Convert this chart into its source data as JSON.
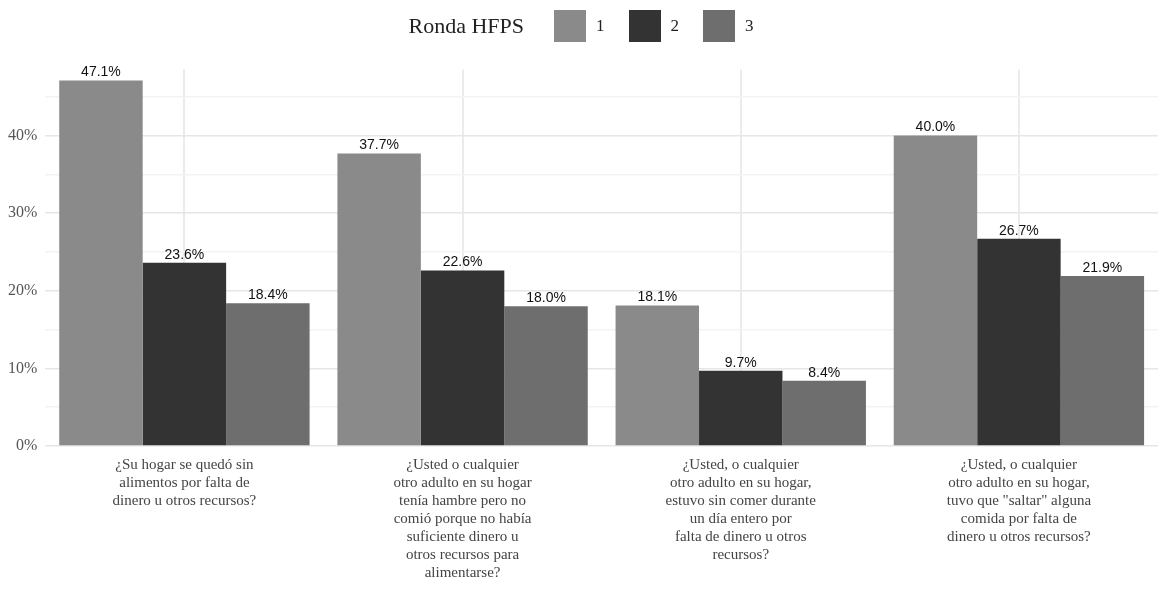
{
  "chart_data": {
    "type": "bar",
    "legend_title": "Ronda HFPS",
    "legend": "top",
    "categories": [
      "¿Su hogar se quedó sin\nalimentos por falta de\ndinero u otros recursos?",
      "¿Usted o cualquier\notro adulto en su hogar\ntenía hambre pero no\ncomió porque no había\nsuficiente dinero u\notros recursos para\nalimentarse?",
      "¿Usted, o cualquier\notro adulto en su hogar,\nestuvo sin comer durante\nun día entero por\nfalta de dinero u otros\nrecursos?",
      "¿Usted, o cualquier\notro adulto en su hogar,\ntuvo que \"saltar\" alguna\ncomida por falta de\ndinero u otros recursos?"
    ],
    "series": [
      {
        "name": "1",
        "color": "#8a8a8a",
        "values": [
          47.1,
          37.7,
          18.1,
          40.0
        ],
        "value_labels": [
          "47.1%",
          "37.7%",
          "18.1%",
          "40.0%"
        ]
      },
      {
        "name": "2",
        "color": "#333333",
        "values": [
          23.6,
          22.6,
          9.7,
          26.7
        ],
        "value_labels": [
          "23.6%",
          "22.6%",
          "9.7%",
          "26.7%"
        ]
      },
      {
        "name": "3",
        "color": "#6e6e6e",
        "values": [
          18.4,
          18.0,
          8.4,
          21.9
        ],
        "value_labels": [
          "18.4%",
          "18.0%",
          "8.4%",
          "21.9%"
        ]
      }
    ],
    "ylim": [
      0,
      48.5
    ],
    "yticks": [
      {
        "value": 0,
        "label": "0%"
      },
      {
        "value": 5,
        "label": null
      },
      {
        "value": 10,
        "label": "10%"
      },
      {
        "value": 15,
        "label": null
      },
      {
        "value": 20,
        "label": "20%"
      },
      {
        "value": 25,
        "label": null
      },
      {
        "value": 30,
        "label": "30%"
      },
      {
        "value": 35,
        "label": null
      },
      {
        "value": 40,
        "label": "40%"
      },
      {
        "value": 45,
        "label": null
      }
    ],
    "grid": true
  }
}
